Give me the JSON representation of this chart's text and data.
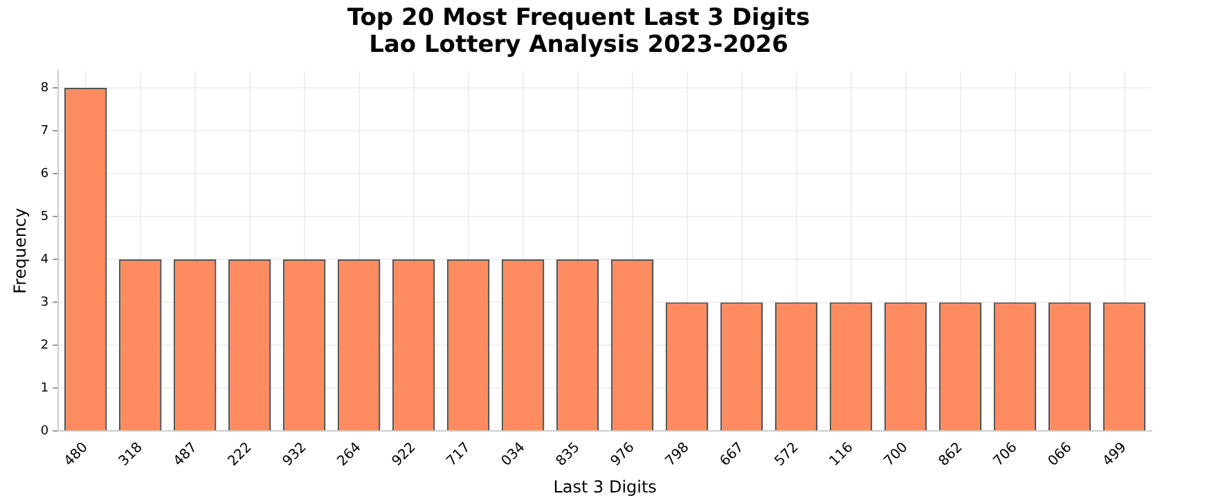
{
  "chart_data": {
    "type": "bar",
    "title": "Top 20 Most Frequent Last 3 Digits\nLao Lottery Analysis 2023-2026",
    "xlabel": "Last 3 Digits",
    "ylabel": "Frequency",
    "categories": [
      "480",
      "318",
      "487",
      "222",
      "932",
      "264",
      "922",
      "717",
      "034",
      "835",
      "976",
      "798",
      "667",
      "572",
      "116",
      "700",
      "862",
      "706",
      "066",
      "499"
    ],
    "values": [
      8,
      4,
      4,
      4,
      4,
      4,
      4,
      4,
      4,
      4,
      4,
      3,
      3,
      3,
      3,
      3,
      3,
      3,
      3,
      3
    ],
    "color": "#ff8c61",
    "ylim": [
      0,
      8.4
    ],
    "yticks": [
      0,
      1,
      2,
      3,
      4,
      5,
      6,
      7,
      8
    ],
    "grid": true
  }
}
